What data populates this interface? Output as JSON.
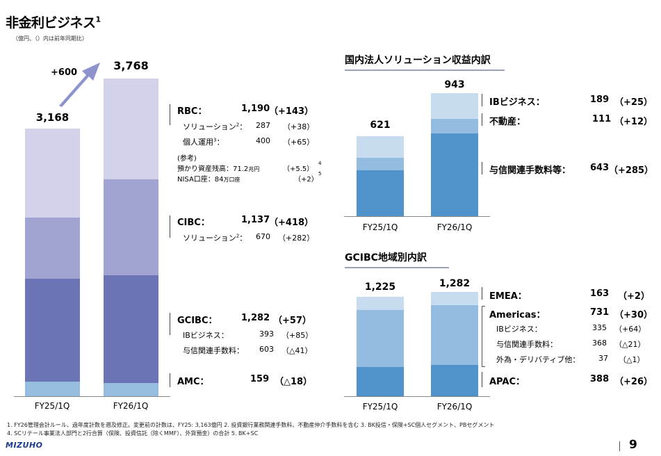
{
  "title": "非金利ビジネス",
  "title_sup": "1",
  "unit_note": "（億円、（）内は前年同期比）",
  "left_chart": {
    "categories": [
      "FY25/1Q",
      "FY26/1Q"
    ],
    "totals": [
      "3,168",
      "3,768"
    ],
    "delta": "+600",
    "colors": {
      "rbc": "#d2d2ea",
      "cibc": "#a1a4d2",
      "gcibc": "#6b75b6",
      "amc": "#96bddf"
    }
  },
  "rbc": {
    "label": "RBC：",
    "value": "1,190",
    "change": "（+143）",
    "rows": [
      {
        "name": "ソリューション",
        "sup": "2",
        "colon": "：",
        "value": "287",
        "change": "（+38）"
      },
      {
        "name": "個人運用",
        "sup": "3",
        "colon": "：",
        "value": "400",
        "change": "（+65）"
      }
    ],
    "ref_title": "(参考)",
    "ref_rows": [
      {
        "text": "預かり資産残高：71.2",
        "unit": "兆円",
        "change": "（+5.5）",
        "sup": "4"
      },
      {
        "text": "NISA口座：84",
        "unit": "万口座",
        "change": "（+2）",
        "sup": "5"
      }
    ]
  },
  "cibc": {
    "label": "CIBC：",
    "value": "1,137",
    "change": "（+418）",
    "rows": [
      {
        "name": "ソリューション",
        "sup": "2",
        "colon": "：",
        "value": "670",
        "change": "（+282）"
      }
    ]
  },
  "gcibc": {
    "label": "GCIBC：",
    "value": "1,282",
    "change": "（+57）",
    "rows": [
      {
        "name": "IBビジネス：",
        "value": "393",
        "change": "（+85）"
      },
      {
        "name": "与信関連手数料：",
        "value": "603",
        "change": "（△41）"
      }
    ]
  },
  "amc": {
    "label": "AMC：",
    "value": "159",
    "change": "（△18）"
  },
  "domestic": {
    "title": "国内法人ソリューション収益内訳",
    "categories": [
      "FY25/1Q",
      "FY26/1Q"
    ],
    "totals": [
      "621",
      "943"
    ],
    "colors": {
      "ib": "#c7dcee",
      "realestate": "#93bce0",
      "credit": "#4f93ca"
    },
    "items": [
      {
        "label": "IBビジネス：",
        "value": "189",
        "change": "（+25）"
      },
      {
        "label": "不動産：",
        "value": "111",
        "change": "（+12）"
      },
      {
        "label": "与信関連手数料等：",
        "value": "643",
        "change": "（+285）"
      }
    ]
  },
  "gcibc_region": {
    "title": "GCIBC地域別内訳",
    "categories": [
      "FY25/1Q",
      "FY26/1Q"
    ],
    "totals": [
      "1,225",
      "1,282"
    ],
    "colors": {
      "emea": "#c7dcee",
      "americas": "#93bce0",
      "apac": "#4f93ca"
    },
    "emea": {
      "label": "EMEA：",
      "value": "163",
      "change": "（+2）"
    },
    "americas": {
      "label": "Americas：",
      "value": "731",
      "change": "（+30）",
      "rows": [
        {
          "name": "IBビジネス：",
          "value": "335",
          "change": "（+64）"
        },
        {
          "name": "与信関連手数料：",
          "value": "368",
          "change": "（△21）"
        },
        {
          "name": "外為・デリバティブ他：",
          "value": "37",
          "change": "（△1）"
        }
      ]
    },
    "apac": {
      "label": "APAC：",
      "value": "388",
      "change": "（+26）"
    }
  },
  "footnotes": [
    "1. FY26管理会計ルール、過年度計数を遡及修正。変更前の計数は、FY25: 3,163億円 2. 投資銀行業務関連手数料、不動産仲介手数料を含む 3. BK投信・保険+SC個人セグメント、PBセグメント",
    "4. SCリテール事業法人部門と2行合算（保険、投資信託（除くMMF）、外貨預金）の合計 5. BK+SC"
  ],
  "logo": "MIZUHO",
  "page_number": "9"
}
